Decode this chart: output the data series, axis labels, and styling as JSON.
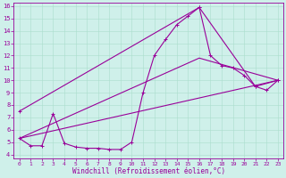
{
  "xlabel": "Windchill (Refroidissement éolien,°C)",
  "bg_color": "#cff0ea",
  "line_color": "#990099",
  "grid_color": "#aaddcc",
  "xlim": [
    -0.5,
    23.5
  ],
  "ylim": [
    3.7,
    16.3
  ],
  "xticks": [
    0,
    1,
    2,
    3,
    4,
    5,
    6,
    7,
    8,
    9,
    10,
    11,
    12,
    13,
    14,
    15,
    16,
    17,
    18,
    19,
    20,
    21,
    22,
    23
  ],
  "yticks": [
    4,
    5,
    6,
    7,
    8,
    9,
    10,
    11,
    12,
    13,
    14,
    15,
    16
  ],
  "line1_x": [
    0,
    1,
    2,
    3,
    4,
    5,
    6,
    7,
    8,
    9,
    10,
    11,
    12,
    13,
    14,
    15,
    16,
    17,
    18,
    19,
    20,
    21,
    22,
    23
  ],
  "line1_y": [
    5.3,
    4.7,
    4.7,
    7.3,
    4.9,
    4.6,
    4.5,
    4.5,
    4.4,
    4.4,
    5.0,
    9.0,
    12.0,
    13.3,
    14.5,
    15.2,
    15.9,
    12.0,
    11.2,
    11.0,
    10.4,
    9.5,
    9.2,
    10.0
  ],
  "line2_x": [
    0,
    23
  ],
  "line2_y": [
    5.3,
    10.0
  ],
  "line3_x": [
    0,
    16,
    23
  ],
  "line3_y": [
    5.3,
    11.8,
    10.0
  ],
  "line4_x": [
    0,
    16,
    21,
    23
  ],
  "line4_y": [
    7.5,
    15.9,
    9.5,
    10.0
  ]
}
